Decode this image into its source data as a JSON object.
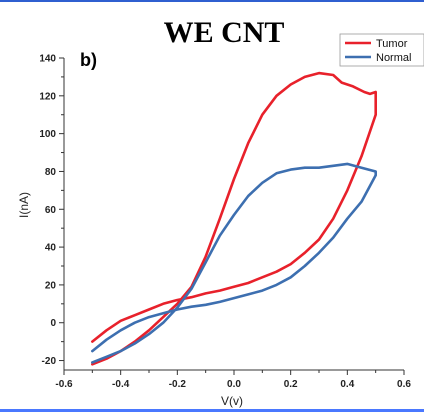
{
  "chart_data": {
    "type": "line",
    "title": "WE CNT",
    "panel_label": "b)",
    "xlabel": "V(v)",
    "ylabel": "I(nA)",
    "xlim": [
      -0.6,
      0.6
    ],
    "ylim": [
      -25,
      140
    ],
    "xticks": [
      -0.6,
      -0.4,
      -0.2,
      0.0,
      0.2,
      0.4,
      0.6
    ],
    "xtick_labels": [
      "-0.6",
      "-0.4",
      "-0.2",
      "0.0",
      "0.2",
      "0.4",
      "0.6"
    ],
    "yticks": [
      -20,
      0,
      20,
      40,
      60,
      80,
      100,
      120,
      140
    ],
    "ytick_labels": [
      "-20",
      "0",
      "20",
      "40",
      "60",
      "80",
      "100",
      "120",
      "140"
    ],
    "grid": false,
    "legend_position": "top-right",
    "series": [
      {
        "name": "Tumor",
        "color": "#e8212b",
        "x": [
          -0.5,
          -0.45,
          -0.4,
          -0.35,
          -0.3,
          -0.25,
          -0.2,
          -0.15,
          -0.1,
          -0.05,
          0.0,
          0.05,
          0.1,
          0.15,
          0.2,
          0.25,
          0.3,
          0.35,
          0.38,
          0.42,
          0.46,
          0.48,
          0.5,
          0.5,
          0.45,
          0.4,
          0.35,
          0.3,
          0.25,
          0.2,
          0.15,
          0.1,
          0.05,
          0.0,
          -0.05,
          -0.1,
          -0.15,
          -0.2,
          -0.25,
          -0.3,
          -0.35,
          -0.4,
          -0.45,
          -0.5
        ],
        "y": [
          -22,
          -19,
          -15,
          -10,
          -4,
          3,
          10,
          19,
          35,
          55,
          76,
          95,
          110,
          120,
          126,
          130,
          132,
          131,
          127,
          125,
          122,
          121,
          122,
          110,
          88,
          70,
          55,
          44,
          37,
          31,
          27,
          24,
          21,
          19,
          17,
          15.5,
          13.5,
          12,
          10,
          7,
          4,
          1,
          -4,
          -10
        ]
      },
      {
        "name": "Normal",
        "color": "#3d6fb0",
        "x": [
          -0.5,
          -0.45,
          -0.4,
          -0.35,
          -0.3,
          -0.25,
          -0.2,
          -0.15,
          -0.1,
          -0.05,
          0.0,
          0.05,
          0.1,
          0.15,
          0.2,
          0.25,
          0.3,
          0.35,
          0.4,
          0.45,
          0.5,
          0.5,
          0.45,
          0.4,
          0.35,
          0.3,
          0.25,
          0.2,
          0.15,
          0.1,
          0.05,
          0.0,
          -0.05,
          -0.1,
          -0.15,
          -0.2,
          -0.25,
          -0.3,
          -0.35,
          -0.4,
          -0.45,
          -0.5
        ],
        "y": [
          -21,
          -18,
          -15,
          -11,
          -6,
          0,
          8,
          18,
          32,
          46,
          57,
          67,
          74,
          79,
          81,
          82,
          82,
          83,
          84,
          82,
          80,
          78,
          64,
          55,
          45,
          37,
          30,
          24,
          20,
          17,
          15,
          13,
          11,
          9.5,
          8.5,
          7,
          5,
          3,
          0,
          -4,
          -9,
          -15
        ]
      }
    ]
  }
}
